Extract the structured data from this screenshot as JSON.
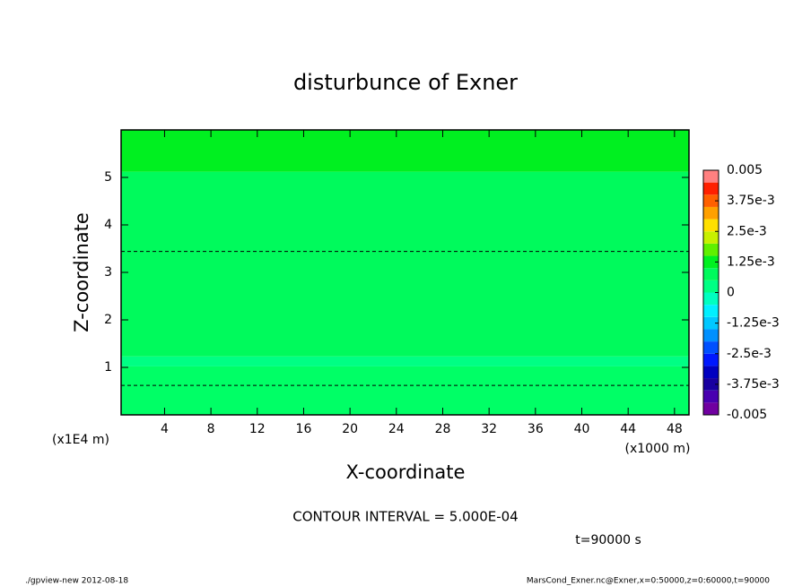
{
  "chart_data": {
    "type": "contour",
    "title": "disturbunce of Exner",
    "x_label": "X-coordinate",
    "y_label": "Z-coordinate",
    "x_unit": "(x1000 m)",
    "y_unit": "(x1E4 m)",
    "xlim": [
      0.25,
      49.25
    ],
    "ylim": [
      0,
      6
    ],
    "xticks": [
      4,
      8,
      12,
      16,
      20,
      24,
      28,
      32,
      36,
      40,
      44,
      48
    ],
    "yticks": [
      1,
      2,
      3,
      4,
      5
    ],
    "fill_bands": [
      {
        "ylim": [
          0,
          1.02
        ],
        "color": "#00ff66"
      },
      {
        "ylim": [
          1.02,
          1.23
        ],
        "color": "#00ff84"
      },
      {
        "ylim": [
          1.23,
          5.12
        ],
        "color": "#00fa5c"
      },
      {
        "ylim": [
          5.12,
          6
        ],
        "color": "#00f020"
      }
    ],
    "contours": [
      {
        "y": 3.44,
        "color": "#000000"
      },
      {
        "y": 0.62,
        "color": "#000000"
      }
    ],
    "colorbar": {
      "clim": [
        -0.005,
        0.005
      ],
      "colors": [
        "#7000a0",
        "#4800b0",
        "#1800a0",
        "#0000c0",
        "#0018ff",
        "#0050ff",
        "#0090ff",
        "#00c8ff",
        "#00f0ff",
        "#00ffc0",
        "#00ff84",
        "#00fa5c",
        "#00f020",
        "#60f000",
        "#c8f000",
        "#ffe000",
        "#ffa000",
        "#ff6000",
        "#ff2000",
        "#ff8080"
      ],
      "ticks": [
        -0.005,
        {
          "value": -0.00375,
          "label": "-3.75e-3"
        },
        {
          "value": -0.0025,
          "label": "-2.5e-3"
        },
        {
          "value": -0.00125,
          "label": "-1.25e-3"
        },
        0,
        {
          "value": 0.00125,
          "label": "1.25e-3"
        },
        {
          "value": 0.0025,
          "label": "2.5e-3"
        },
        {
          "value": 0.00375,
          "label": "3.75e-3"
        },
        0.005
      ]
    },
    "annotations": [
      "CONTOUR INTERVAL = 5.000E-04",
      "t=90000 s"
    ],
    "footer_left": "./gpview-new  2012-08-18",
    "footer_right": "MarsCond_Exner.nc@Exner,x=0:50000,z=0:60000,t=90000"
  }
}
